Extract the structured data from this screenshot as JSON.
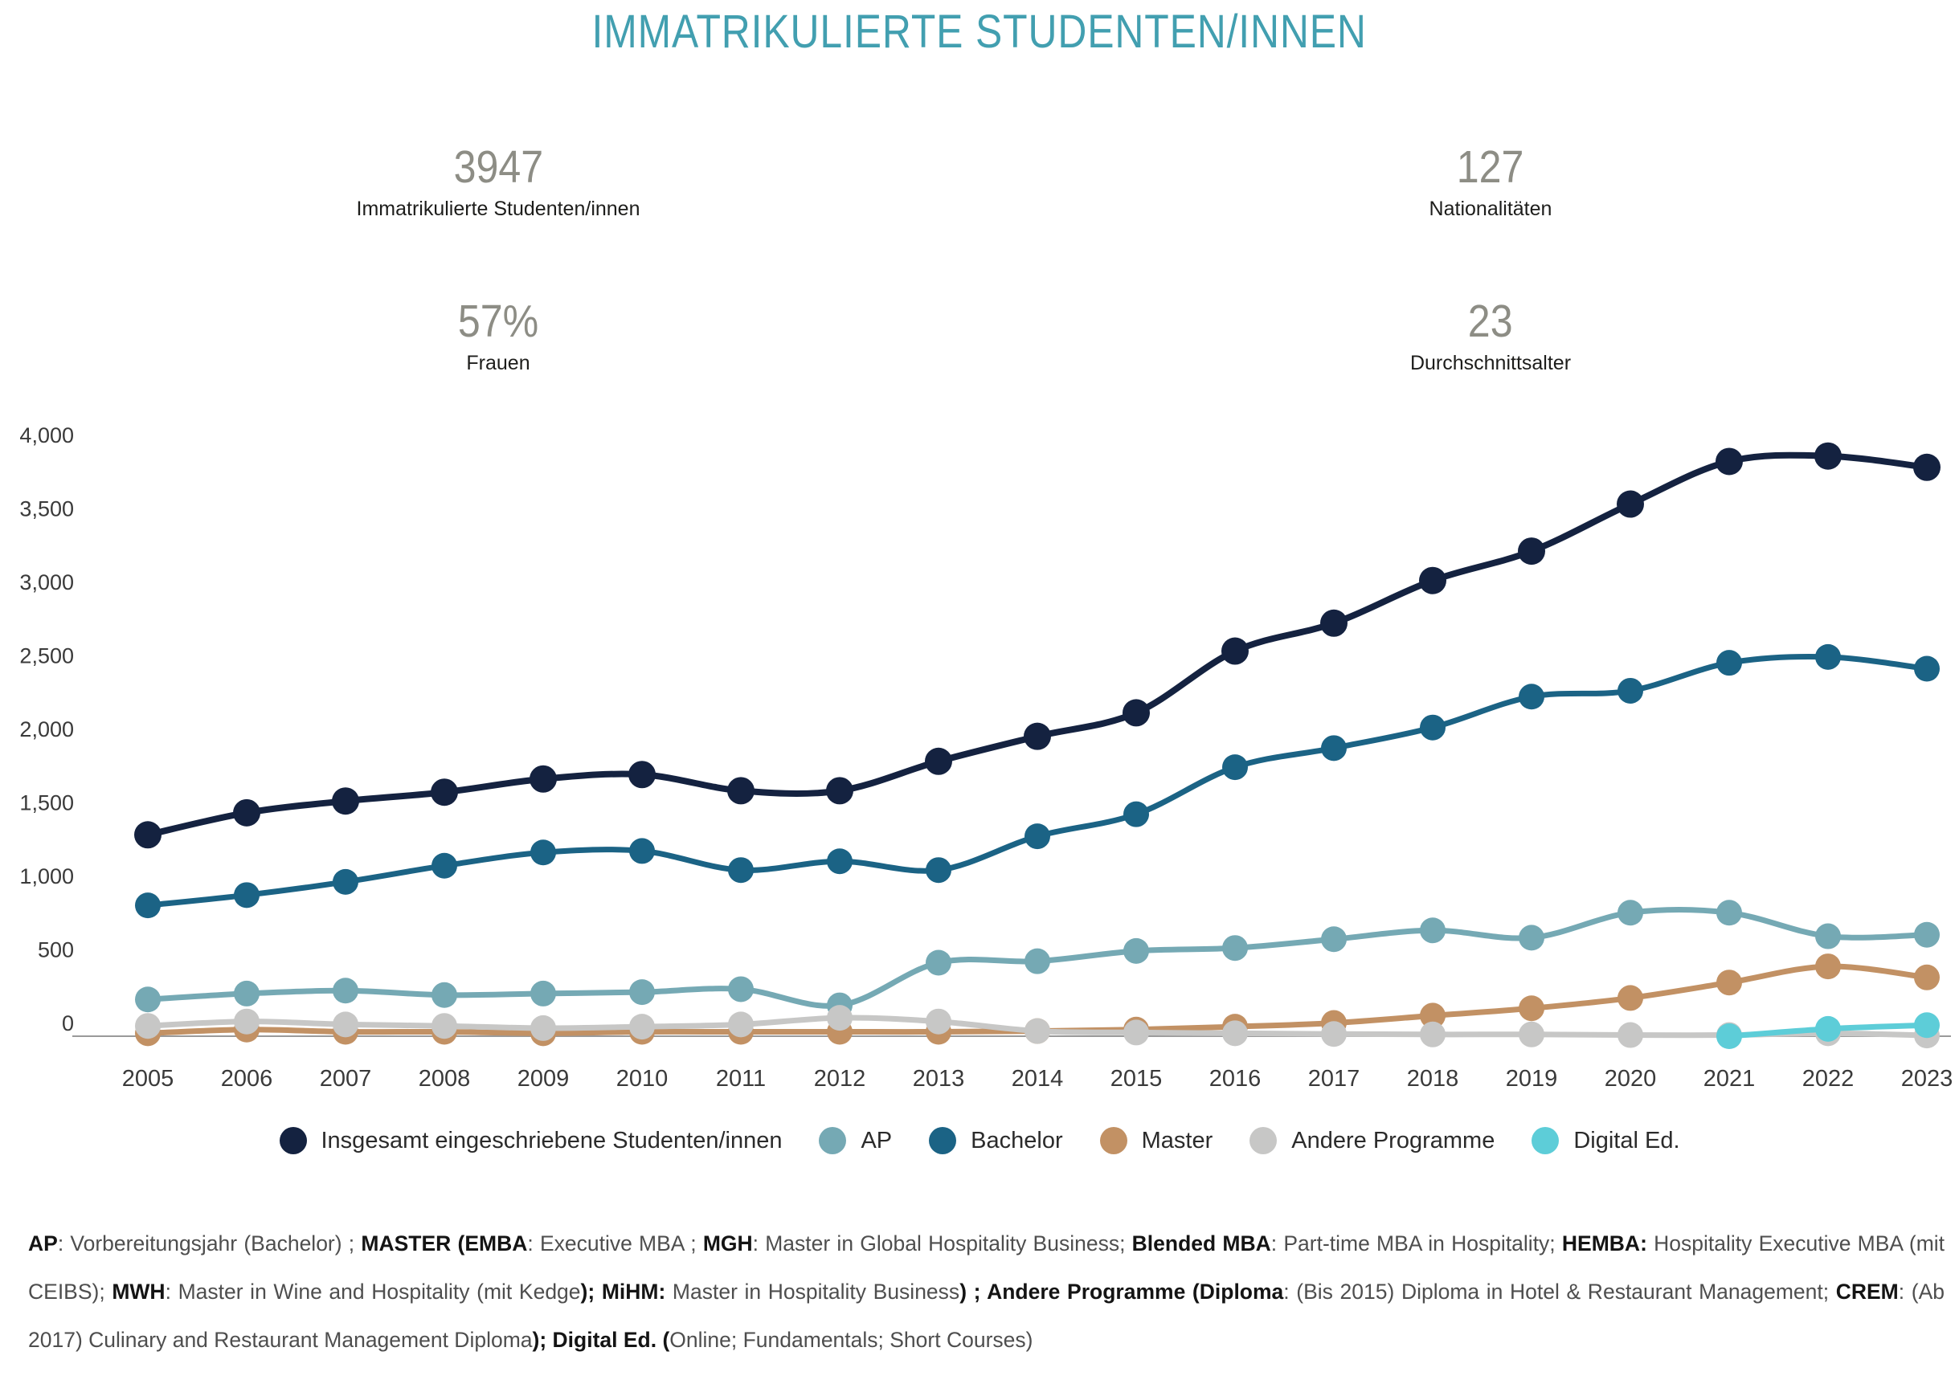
{
  "title": "IMMATRIKULIERTE STUDENTEN/INNEN",
  "stats": [
    {
      "value": "3947",
      "label": "Immatrikulierte Studenten/innen"
    },
    {
      "value": "127",
      "label": "Nationalitäten"
    },
    {
      "value": "57%",
      "label": "Frauen"
    },
    {
      "value": "23",
      "label": "Durchschnittsalter"
    }
  ],
  "colors": {
    "title_accent": "#429fb0",
    "stat_number": "#8d8d85",
    "axis_text": "#3a3a3a",
    "axis_line": "#9a9a9a"
  },
  "chart_data": {
    "type": "line",
    "title": "",
    "xlabel": "",
    "ylabel": "",
    "grid": false,
    "legend_position": "bottom",
    "ylim": [
      0,
      4000
    ],
    "yticks": [
      0,
      500,
      1000,
      1500,
      2000,
      2500,
      3000,
      3500,
      4000
    ],
    "ytick_labels": [
      "0",
      "500",
      "1,000",
      "1,500",
      "2,000",
      "2,500",
      "3,000",
      "3,500",
      "4,000"
    ],
    "x": [
      2005,
      2006,
      2007,
      2008,
      2009,
      2010,
      2011,
      2012,
      2013,
      2014,
      2015,
      2016,
      2017,
      2018,
      2019,
      2020,
      2021,
      2022,
      2023
    ],
    "series": [
      {
        "name": "Insgesamt eingeschriebene Studenten/innen",
        "color": "#142240",
        "values": [
          1370,
          1520,
          1600,
          1660,
          1750,
          1780,
          1670,
          1670,
          1870,
          2040,
          2200,
          2620,
          2810,
          3100,
          3300,
          3620,
          3910,
          3947,
          3870
        ]
      },
      {
        "name": "AP",
        "color": "#75a9b4",
        "values": [
          250,
          290,
          310,
          280,
          290,
          300,
          320,
          210,
          500,
          510,
          580,
          600,
          660,
          720,
          670,
          840,
          840,
          680,
          690
        ]
      },
      {
        "name": "Bachelor",
        "color": "#1b6385",
        "values": [
          890,
          960,
          1050,
          1160,
          1250,
          1260,
          1130,
          1190,
          1130,
          1360,
          1510,
          1830,
          1960,
          2100,
          2310,
          2350,
          2540,
          2580,
          2500
        ]
      },
      {
        "name": "Master",
        "color": "#c29164",
        "values": [
          20,
          45,
          30,
          30,
          20,
          30,
          30,
          30,
          30,
          35,
          45,
          65,
          90,
          140,
          190,
          260,
          365,
          475,
          400
        ]
      },
      {
        "name": "Andere Programme",
        "color": "#c7c7c6",
        "values": [
          70,
          100,
          80,
          70,
          55,
          65,
          80,
          125,
          100,
          35,
          25,
          20,
          15,
          12,
          12,
          8,
          8,
          20,
          5
        ]
      },
      {
        "name": "Digital Ed.",
        "color": "#5dcdd8",
        "values": [
          null,
          null,
          null,
          null,
          null,
          null,
          null,
          null,
          null,
          null,
          null,
          null,
          null,
          null,
          null,
          null,
          0,
          50,
          75
        ]
      }
    ]
  },
  "footnote": {
    "segments": [
      {
        "bold": true,
        "text": "AP"
      },
      {
        "bold": false,
        "text": ": Vorbereitungsjahr (Bachelor) ; "
      },
      {
        "bold": true,
        "text": "MASTER (EMBA"
      },
      {
        "bold": false,
        "text": ": Executive MBA ; "
      },
      {
        "bold": true,
        "text": "MGH"
      },
      {
        "bold": false,
        "text": ": Master in Global Hospitality Business; "
      },
      {
        "bold": true,
        "text": "Blended MBA"
      },
      {
        "bold": false,
        "text": ": Part-time MBA in Hospitality; "
      },
      {
        "bold": true,
        "text": "HEMBA:"
      },
      {
        "bold": false,
        "text": " Hospitality Executive MBA (mit CEIBS); "
      },
      {
        "bold": true,
        "text": "MWH"
      },
      {
        "bold": false,
        "text": ": Master in Wine and Hospitality (mit Kedge"
      },
      {
        "bold": true,
        "text": "); MiHM:"
      },
      {
        "bold": false,
        "text": " Master in Hospitality Business"
      },
      {
        "bold": true,
        "text": ") ; Andere Programme (Diploma"
      },
      {
        "bold": false,
        "text": ": (Bis 2015) Diploma in Hotel & Restaurant Management; "
      },
      {
        "bold": true,
        "text": "CREM"
      },
      {
        "bold": false,
        "text": ": (Ab 2017) Culinary and Restaurant Management Diploma"
      },
      {
        "bold": true,
        "text": "); Digital Ed. ("
      },
      {
        "bold": false,
        "text": "Online; Fundamentals; Short Courses)"
      }
    ]
  }
}
